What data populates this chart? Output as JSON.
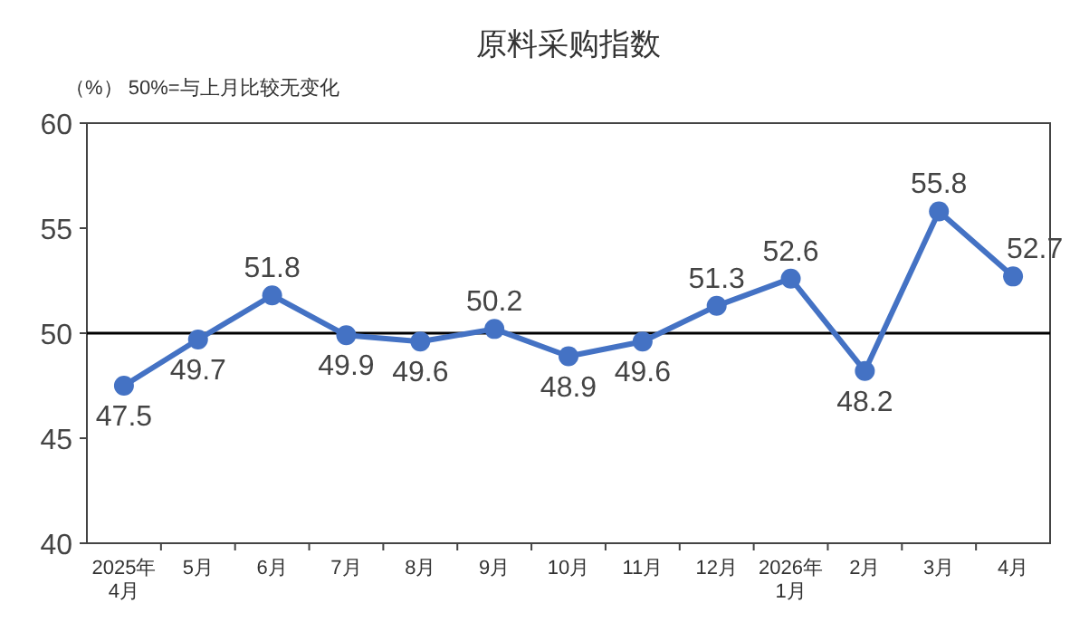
{
  "chart_data": {
    "type": "line",
    "title": "原料采购指数",
    "annotations": [
      "（%） 50%=与上月比较无变化"
    ],
    "categories": [
      "2025年\n4月",
      "5月",
      "6月",
      "7月",
      "8月",
      "9月",
      "10月",
      "11月",
      "12月",
      "2026年\n1月",
      "2月",
      "3月",
      "4月"
    ],
    "series": [
      {
        "color": "#4472c4",
        "values": [
          47.5,
          49.7,
          51.8,
          49.9,
          49.6,
          50.2,
          48.9,
          49.6,
          51.3,
          52.6,
          48.2,
          55.8,
          52.7
        ]
      }
    ],
    "ylim": [
      40,
      60
    ],
    "yticks": [
      40,
      45,
      50,
      55,
      60
    ],
    "ref_lines": [
      {
        "axis": "y",
        "value": 50,
        "color": "#000000"
      }
    ],
    "data_labels": true,
    "marker": "circle",
    "grid": false
  }
}
